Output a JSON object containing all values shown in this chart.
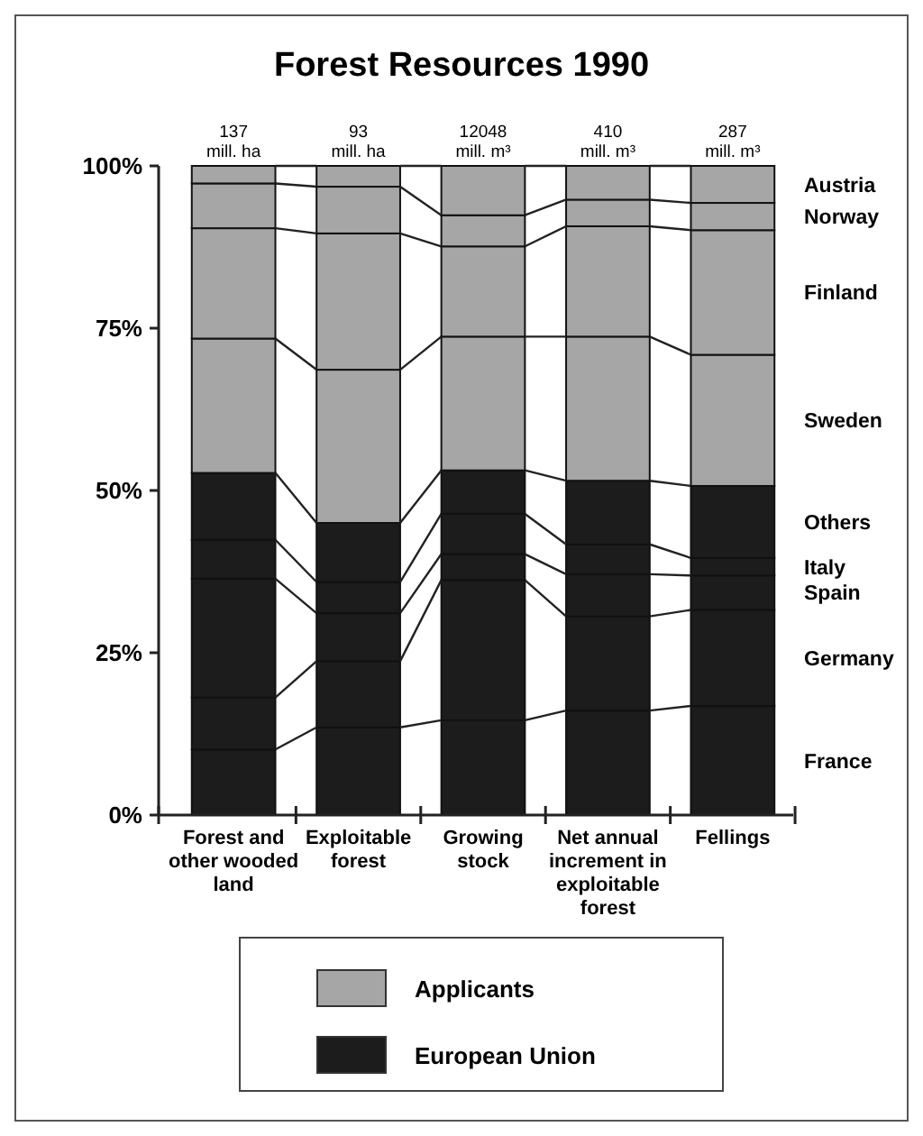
{
  "chart_data": {
    "type": "bar",
    "title": "Forest Resources 1990",
    "stacked": true,
    "categories": [
      "Forest and other wooded land",
      "Exploitable forest",
      "Growing stock",
      "Net annual increment in exploitable forest",
      "Fellings"
    ],
    "ylim": [
      0,
      100
    ],
    "yticks": [
      {
        "value": 0,
        "label": "0%"
      },
      {
        "value": 25,
        "label": "25%"
      },
      {
        "value": 50,
        "label": "50%"
      },
      {
        "value": 75,
        "label": "75%"
      },
      {
        "value": 100,
        "label": "100%"
      }
    ],
    "series": [
      {
        "name": "France",
        "color": "#1c1c1c",
        "values": [
          10.1,
          13.5,
          14.6,
          16.1,
          16.8
        ]
      },
      {
        "name": "Germany",
        "color": "#1c1c1c",
        "values": [
          8.0,
          10.2,
          21.6,
          14.5,
          14.8
        ]
      },
      {
        "name": "Spain",
        "color": "#1c1c1c",
        "values": [
          18.3,
          7.4,
          4.0,
          6.5,
          5.3
        ]
      },
      {
        "name": "Italy",
        "color": "#1c1c1c",
        "values": [
          6.0,
          4.8,
          6.2,
          4.6,
          2.7
        ]
      },
      {
        "name": "Others",
        "color": "#1c1c1c",
        "values": [
          10.3,
          9.1,
          6.7,
          9.8,
          11.1
        ]
      },
      {
        "name": "Sweden",
        "color": "#a6a6a6",
        "values": [
          20.7,
          23.6,
          20.6,
          22.2,
          20.2
        ]
      },
      {
        "name": "Finland",
        "color": "#a6a6a6",
        "values": [
          17.0,
          21.0,
          13.9,
          17.0,
          19.2
        ]
      },
      {
        "name": "Norway",
        "color": "#a6a6a6",
        "values": [
          6.9,
          7.2,
          4.8,
          4.1,
          4.2
        ]
      },
      {
        "name": "Austria",
        "color": "#a6a6a6",
        "values": [
          2.7,
          3.2,
          7.6,
          5.2,
          5.7
        ]
      }
    ],
    "annotations": [
      {
        "text": "137 mill. ha",
        "x": "Forest and other wooded land",
        "y": 100
      },
      {
        "text": "93 mill. ha",
        "x": "Exploitable forest",
        "y": 100
      },
      {
        "text": "12048 mill. m³",
        "x": "Growing stock",
        "y": 100
      },
      {
        "text": "410 mill. m³",
        "x": "Net annual increment in exploitable forest",
        "y": 100
      },
      {
        "text": "287 mill. m³",
        "x": "Fellings",
        "y": 100
      },
      "Applicants",
      "European Union"
    ]
  }
}
